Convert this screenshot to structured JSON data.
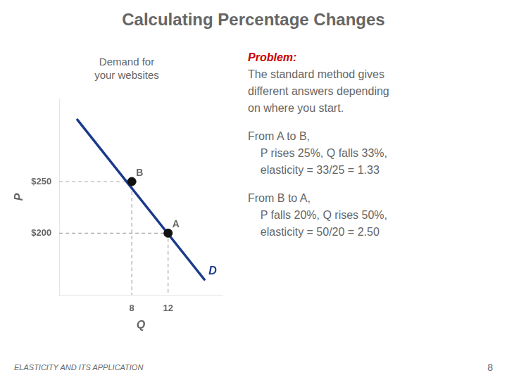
{
  "chart_data": {
    "type": "line",
    "title": "Calculating Percentage Changes",
    "xlabel": "Q",
    "ylabel": "P",
    "series": [
      {
        "name": "D",
        "type": "line",
        "color": "#1a3a8c",
        "x": [
          2,
          16
        ],
        "values": [
          310,
          155
        ]
      },
      {
        "type": "scatter",
        "color": "#111111",
        "x": [
          12,
          8
        ],
        "values": [
          200,
          250
        ],
        "point_labels": [
          "A",
          "B"
        ]
      }
    ],
    "xlim": [
      0,
      18
    ],
    "ylim": [
      140,
      330
    ],
    "xticks": [
      8,
      12
    ],
    "yticks": [
      {
        "value": 200,
        "label": "$200"
      },
      {
        "value": 250,
        "label": "$250"
      }
    ],
    "grid": false,
    "annotations": [
      [
        "Demand for\nyour websites"
      ],
      [
        {
          "text": "Problem:",
          "color": "#cc0000"
        },
        "The standard method gives",
        "different answers depending",
        "on where you start."
      ],
      [
        "From A to B,",
        "    P rises 25%, Q falls 33%,",
        "    elasticity = 33/25 = 1.33"
      ],
      [
        "From B to A,",
        "    P falls 20%, Q rises 50%,",
        "    elasticity = 50/20 = 2.50"
      ],
      [
        "ELASTICITY AND ITS APPLICATION",
        "8"
      ]
    ]
  }
}
